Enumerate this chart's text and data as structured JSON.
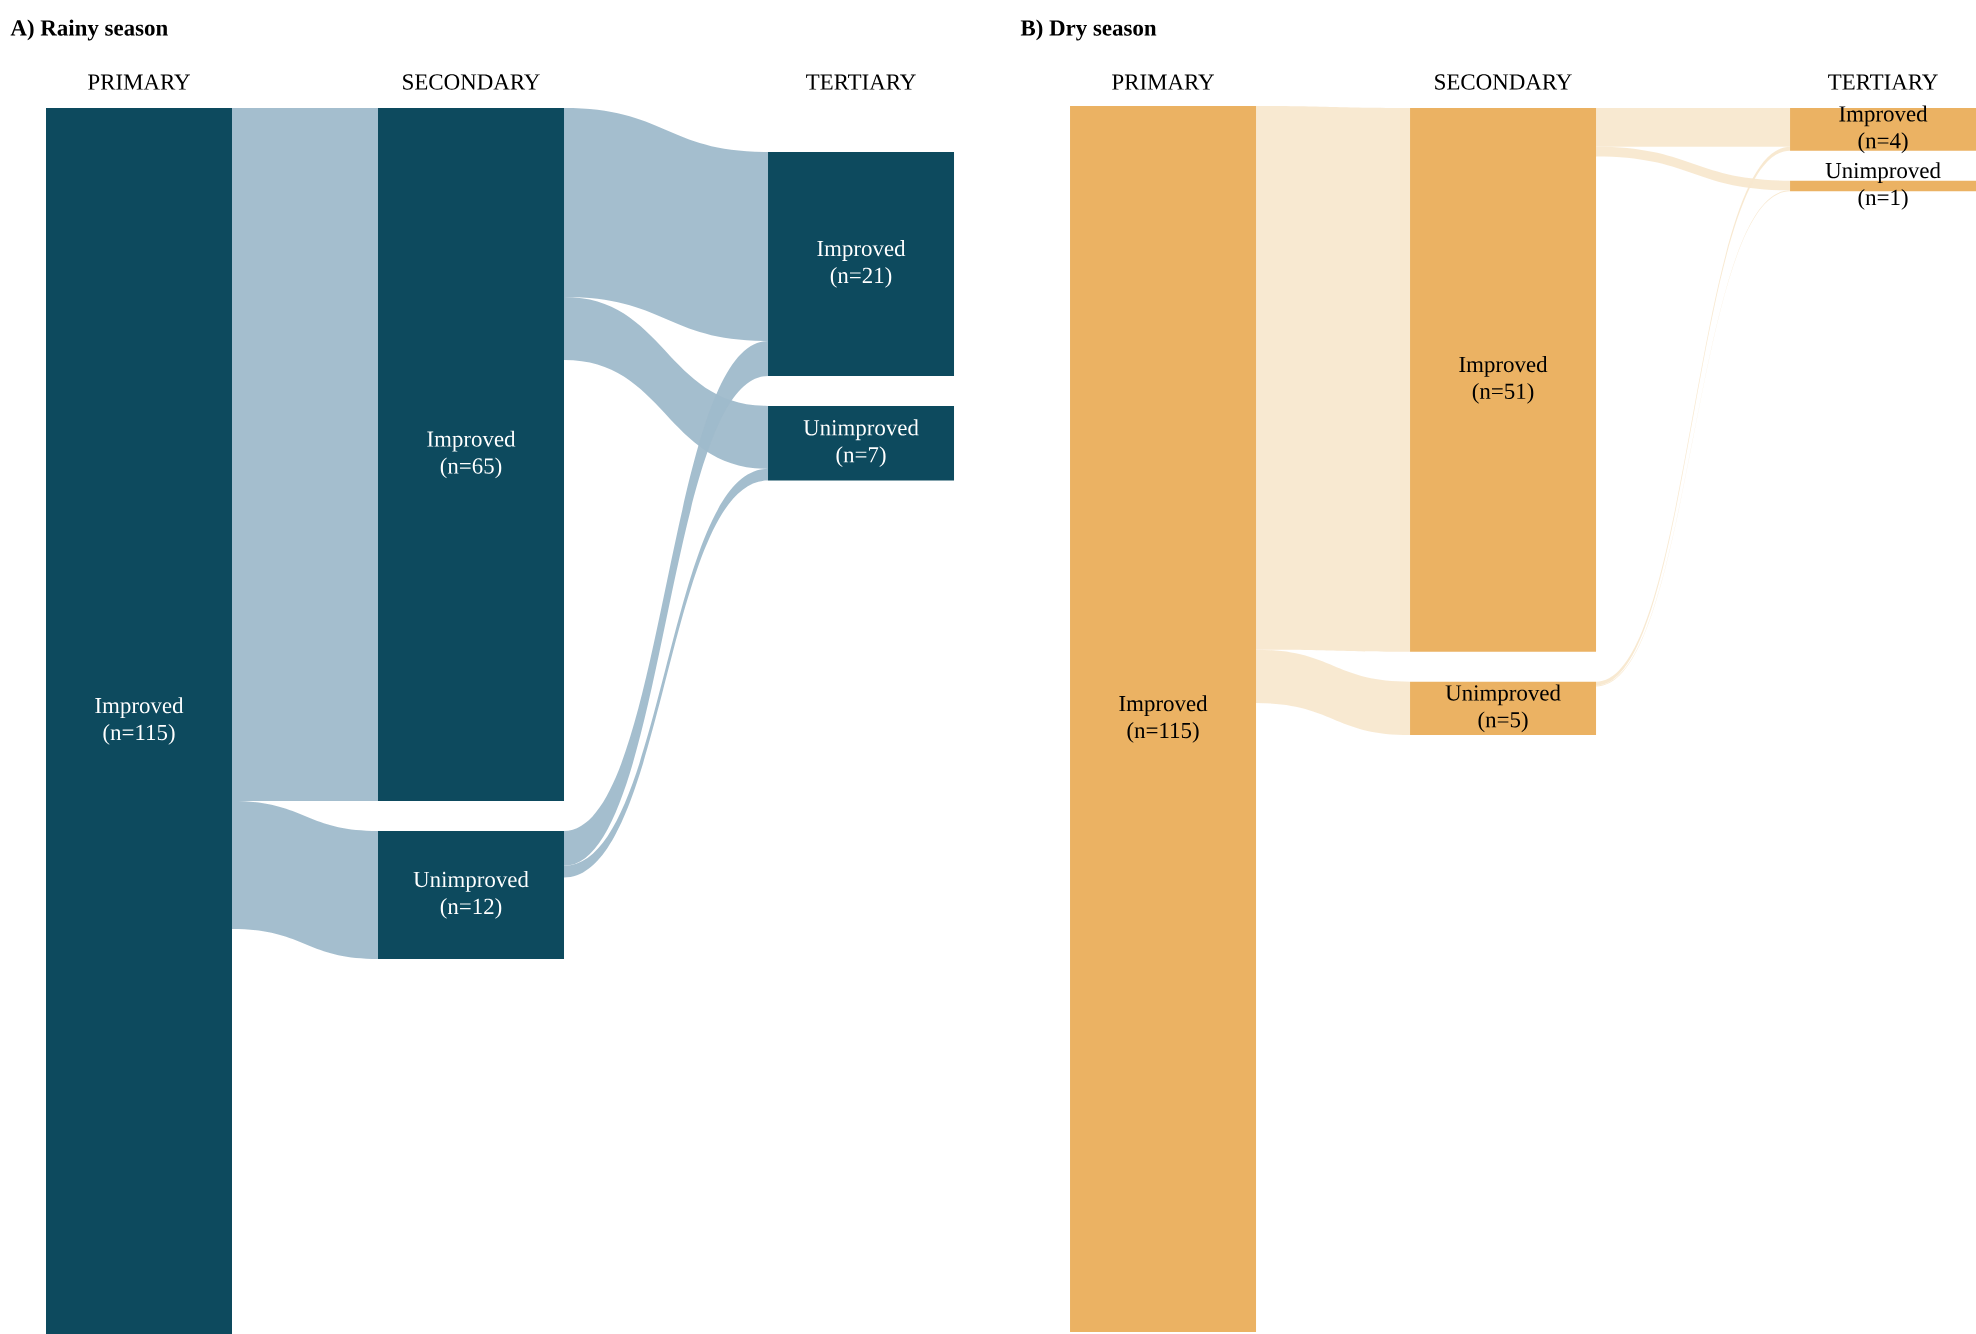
{
  "chart_data": [
    {
      "type": "other",
      "title": "A) Rainy season",
      "categories": [
        "PRIMARY",
        "SECONDARY",
        "TERTIARY"
      ],
      "colors": [
        "#0d4a5e",
        "#9fbacb",
        "#ffffff"
      ],
      "series": [
        {
          "name": "Improved",
          "values": [
            115,
            65,
            21
          ],
          "value_labels": [
            "(n=115)",
            "(n=65)",
            "(n=21)"
          ]
        },
        {
          "name": "Unimproved",
          "values": [
            null,
            12,
            7
          ],
          "value_labels": [
            null,
            "(n=12)",
            "(n=7)"
          ]
        }
      ]
    },
    {
      "type": "other",
      "title": "B) Dry season",
      "categories": [
        "PRIMARY",
        "SECONDARY",
        "TERTIARY"
      ],
      "colors": [
        "#ebb263",
        "#f8e8cf",
        "#000000"
      ],
      "series": [
        {
          "name": "Improved",
          "values": [
            115,
            51,
            4
          ],
          "value_labels": [
            "(n=115)",
            "(n=51)",
            "(n=4)"
          ]
        },
        {
          "name": "Unimproved",
          "values": [
            null,
            5,
            1
          ],
          "value_labels": [
            null,
            "(n=5)",
            "(n=1)"
          ]
        }
      ]
    }
  ]
}
